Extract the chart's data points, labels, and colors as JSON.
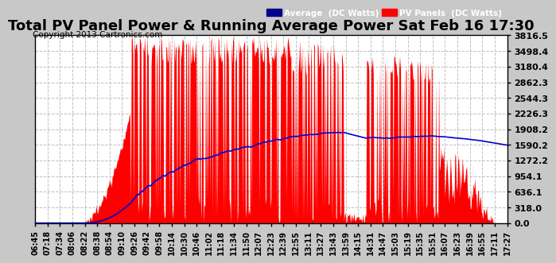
{
  "title": "Total PV Panel Power & Running Average Power Sat Feb 16 17:30",
  "copyright": "Copyright 2013 Cartronics.com",
  "y_ticks": [
    0.0,
    318.0,
    636.1,
    954.1,
    1272.2,
    1590.2,
    1908.2,
    2226.3,
    2544.3,
    2862.3,
    3180.4,
    3498.4,
    3816.5
  ],
  "y_max": 3816.5,
  "y_min": 0.0,
  "background_color": "#c8c8c8",
  "plot_bg_color": "#ffffff",
  "pv_color": "#ff0000",
  "avg_color": "#0000cd",
  "legend_avg_bg": "#00008b",
  "legend_pv_bg": "#ff0000",
  "legend_avg_text": "Average  (DC Watts)",
  "legend_pv_text": "PV Panels  (DC Watts)",
  "title_fontsize": 13,
  "copyright_fontsize": 7.5,
  "x_label_fontsize": 7,
  "x_labels": [
    "06:45",
    "07:18",
    "07:34",
    "08:06",
    "08:22",
    "08:38",
    "08:54",
    "09:10",
    "09:26",
    "09:42",
    "09:58",
    "10:14",
    "10:30",
    "10:46",
    "11:02",
    "11:18",
    "11:34",
    "11:50",
    "12:07",
    "12:23",
    "12:39",
    "12:55",
    "13:11",
    "13:27",
    "13:43",
    "13:59",
    "14:15",
    "14:31",
    "14:47",
    "15:03",
    "15:19",
    "15:35",
    "15:51",
    "16:07",
    "16:23",
    "16:39",
    "16:55",
    "17:11",
    "17:27"
  ]
}
